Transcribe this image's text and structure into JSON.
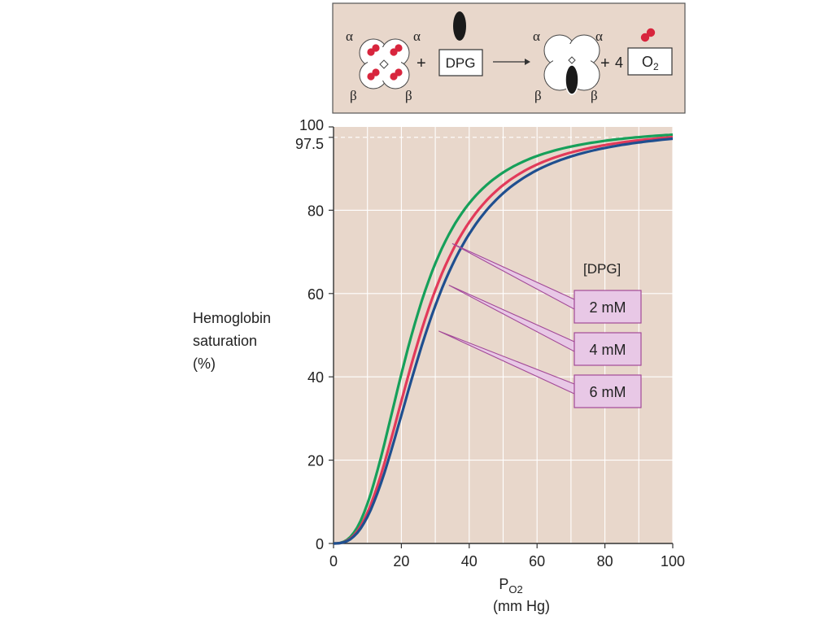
{
  "chart_data": {
    "type": "line",
    "title": "",
    "xlabel_main": "P",
    "xlabel_sub": "O2",
    "xlabel_units": "(mm Hg)",
    "ylabel": [
      "Hemoglobin",
      "saturation",
      "(%)"
    ],
    "xlim": [
      0,
      100
    ],
    "ylim": [
      0,
      100
    ],
    "x_ticks": [
      0,
      20,
      40,
      60,
      80,
      100
    ],
    "y_ticks": [
      0,
      20,
      40,
      60,
      80,
      100
    ],
    "y_extra_tick": 97.5,
    "grid": true,
    "legend_title": "[DPG]",
    "series": [
      {
        "name": "2 mM",
        "color": "#16a05a",
        "p50": 23,
        "n": 2.7,
        "x": [
          0,
          5,
          10,
          15,
          20,
          25,
          30,
          35,
          40,
          50,
          60,
          70,
          80,
          90,
          100
        ],
        "y": [
          0,
          1.4,
          8.8,
          22.3,
          39.9,
          56.0,
          68.4,
          77.0,
          82.7,
          89.4,
          92.7,
          94.5,
          95.8,
          96.6,
          97.2
        ]
      },
      {
        "name": "4 mM",
        "color": "#e23a5a",
        "p50": 25.5,
        "n": 2.7,
        "x": [
          0,
          5,
          10,
          15,
          20,
          25,
          30,
          35,
          40,
          50,
          60,
          70,
          80,
          90,
          100
        ],
        "y": [
          0,
          1.2,
          7.1,
          18.7,
          33.8,
          48.8,
          61.4,
          70.9,
          77.7,
          86.2,
          90.6,
          93.1,
          94.7,
          95.7,
          96.5
        ]
      },
      {
        "name": "6 mM",
        "color": "#1f4f8f",
        "p50": 27,
        "n": 2.7,
        "x": [
          0,
          5,
          10,
          15,
          20,
          25,
          30,
          35,
          40,
          50,
          60,
          70,
          80,
          90,
          100
        ],
        "y": [
          0,
          1.0,
          5.9,
          15.7,
          29.0,
          43.5,
          56.3,
          66.4,
          74.0,
          83.7,
          88.8,
          91.8,
          93.7,
          95.0,
          95.9
        ]
      }
    ],
    "annotations": [
      {
        "label": "2 mM",
        "point": [
          35,
          72
        ]
      },
      {
        "label": "4 mM",
        "point": [
          34,
          62
        ]
      },
      {
        "label": "6 mM",
        "point": [
          31,
          51
        ]
      }
    ]
  },
  "diagram": {
    "alpha": "α",
    "beta": "β",
    "plus": "+",
    "four": "4",
    "dpg_label": "DPG",
    "o2_main": "O",
    "o2_sub": "2"
  },
  "colors": {
    "panel_bg": "#e8d7cb",
    "grid": "#ffffff",
    "callout_fill": "#e8c8e6",
    "callout_stroke": "#a34a98",
    "axis": "#333333"
  }
}
